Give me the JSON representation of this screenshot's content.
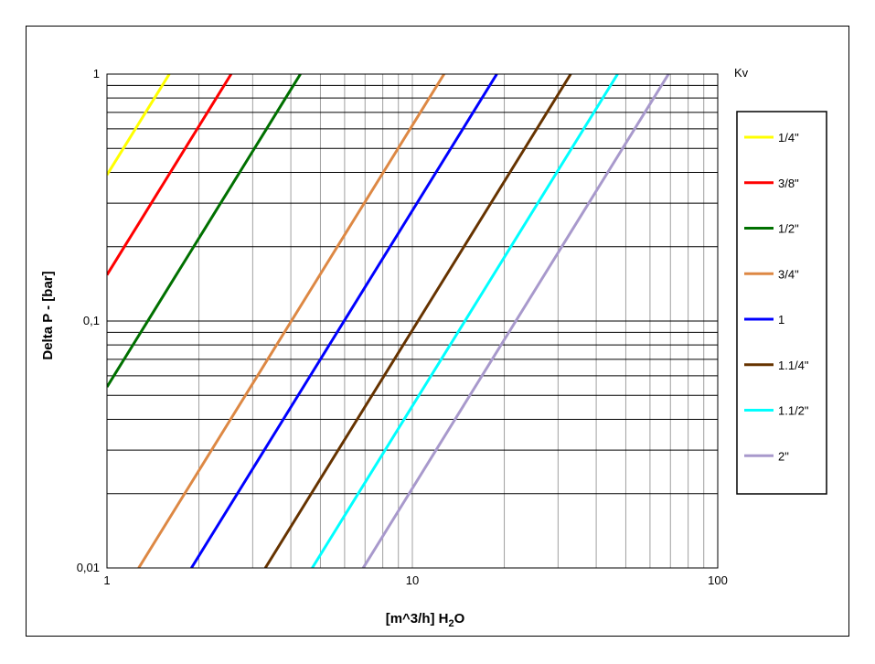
{
  "chart_data": {
    "type": "line",
    "xscale": "log",
    "yscale": "log",
    "xlim": [
      1,
      100
    ],
    "ylim": [
      0.01,
      1
    ],
    "xlabel": "[m^3/h] H",
    "xlabel_sub": "2",
    "xlabel_tail": "O",
    "ylabel": "Delta P - [bar]",
    "x_ticks": [
      "1",
      "10",
      "100"
    ],
    "y_ticks": [
      "0,01",
      "0,1",
      "1"
    ],
    "legend_title": "Kv",
    "legend_position": "right",
    "grid": true,
    "series": [
      {
        "name": "1/4\"",
        "kv": 1.6,
        "color": "#ffff00"
      },
      {
        "name": "3/8\"",
        "kv": 2.55,
        "color": "#ff0000"
      },
      {
        "name": "1/2\"",
        "kv": 4.3,
        "color": "#007000"
      },
      {
        "name": "3/4\"",
        "kv": 12.7,
        "color": "#dd8844"
      },
      {
        "name": "1",
        "kv": 18.9,
        "color": "#0000ff"
      },
      {
        "name": "1.1/4\"",
        "kv": 33.0,
        "color": "#663300"
      },
      {
        "name": "1.1/2\"",
        "kv": 47.0,
        "color": "#00ffff"
      },
      {
        "name": "2\"",
        "kv": 69.0,
        "color": "#a899cc"
      }
    ]
  }
}
